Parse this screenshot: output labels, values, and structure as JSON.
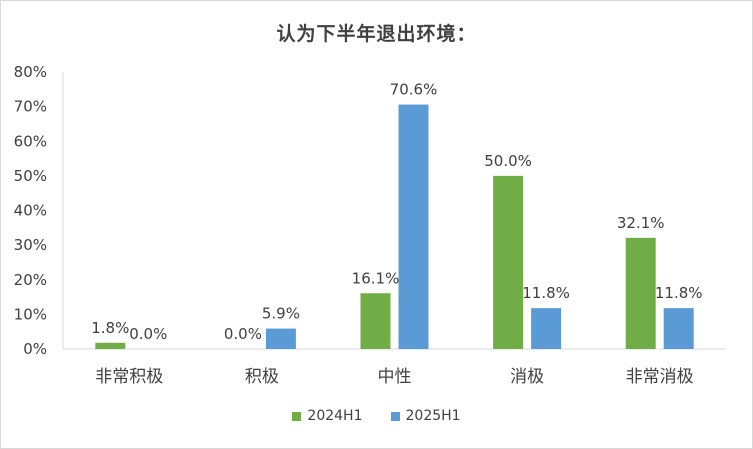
{
  "chart_data": {
    "type": "bar",
    "title": "认为下半年退出环境：",
    "categories": [
      "非常积极",
      "积极",
      "中性",
      "消极",
      "非常消极"
    ],
    "series": [
      {
        "name": "2024H1",
        "color": "#70ad47",
        "values": [
          1.8,
          0.0,
          16.1,
          50.0,
          32.1
        ],
        "labels": [
          "1.8%",
          "0.0%",
          "16.1%",
          "50.0%",
          "32.1%"
        ]
      },
      {
        "name": "2025H1",
        "color": "#5b9bd5",
        "values": [
          0.0,
          5.9,
          70.6,
          11.8,
          11.8
        ],
        "labels": [
          "0.0%",
          "5.9%",
          "70.6%",
          "11.8%",
          "11.8%"
        ]
      }
    ],
    "ylim": [
      0,
      80
    ],
    "yticks": [
      "0%",
      "10%",
      "20%",
      "30%",
      "40%",
      "50%",
      "60%",
      "70%",
      "80%"
    ],
    "grid": false,
    "legend": "bottom"
  }
}
